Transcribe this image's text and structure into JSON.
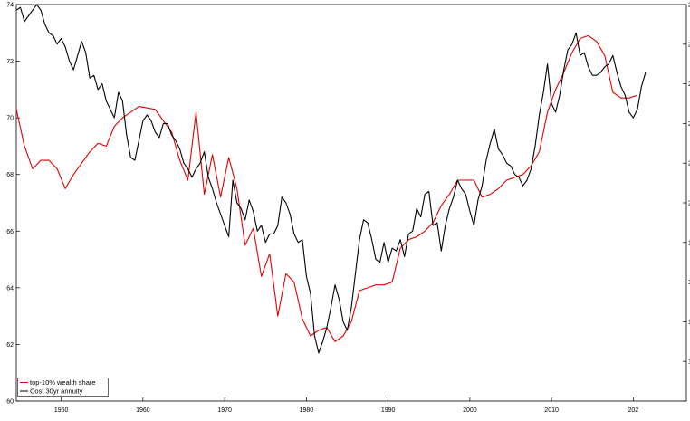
{
  "chart_data": {
    "type": "line",
    "title": "",
    "xlabel": "",
    "ylabel": "",
    "xlim": [
      1944.5,
      2026.5
    ],
    "ylim": [
      60,
      74
    ],
    "x_ticks": [
      "1950",
      "1960",
      "1970",
      "1980",
      "1990",
      "2000",
      "2010",
      "202"
    ],
    "y_ticks": [
      "60",
      "62",
      "64",
      "66",
      "68",
      "70",
      "72",
      "74"
    ],
    "right_ticks": [
      "",
      "1",
      "1",
      "1",
      "1",
      "2",
      "2",
      "2",
      "2",
      "2",
      "2"
    ],
    "grid": false,
    "legend_position": "bottom-left",
    "series": [
      {
        "name": "top-10% wealth share",
        "color": "#e00000",
        "x": [
          1944.5,
          1945.5,
          1946.5,
          1947.5,
          1948.5,
          1949.5,
          1950.5,
          1951.5,
          1952.5,
          1953.5,
          1954.5,
          1955.5,
          1956.5,
          1957.5,
          1958.5,
          1959.5,
          1960.5,
          1961.5,
          1962.5,
          1963.5,
          1964.5,
          1965.5,
          1966.5,
          1967.5,
          1968.5,
          1969.5,
          1970.5,
          1971.5,
          1972.5,
          1973.5,
          1974.5,
          1975.5,
          1976.5,
          1977.5,
          1978.5,
          1979.5,
          1980.5,
          1981.5,
          1982.5,
          1983.5,
          1984.5,
          1985.5,
          1986.5,
          1987.5,
          1988.5,
          1989.5,
          1990.5,
          1991.5,
          1992.5,
          1993.5,
          1994.5,
          1995.5,
          1996.5,
          1997.5,
          1998.5,
          1999.5,
          2000.5,
          2001.5,
          2002.5,
          2003.5,
          2004.5,
          2005.5,
          2006.5,
          2007.5,
          2008.5,
          2009.5,
          2010.5,
          2011.5,
          2012.5,
          2013.5,
          2014.5,
          2015.5,
          2016.5,
          2017.5,
          2018.5,
          2019.5,
          2020.5
        ],
        "values": [
          70.3,
          69.0,
          68.2,
          68.5,
          68.5,
          68.2,
          67.5,
          68.0,
          68.4,
          68.8,
          69.1,
          69.0,
          69.7,
          70.0,
          70.2,
          70.4,
          70.35,
          70.3,
          69.9,
          69.5,
          68.5,
          67.8,
          70.2,
          67.3,
          68.7,
          67.2,
          68.6,
          67.5,
          65.5,
          66.1,
          64.4,
          65.2,
          63.0,
          64.5,
          64.2,
          62.9,
          62.3,
          62.5,
          62.6,
          62.1,
          62.3,
          62.8,
          63.9,
          64.0,
          64.1,
          64.1,
          64.2,
          65.4,
          65.7,
          65.8,
          66.0,
          66.3,
          66.9,
          67.3,
          67.8,
          67.8,
          67.8,
          67.2,
          67.3,
          67.5,
          67.8,
          67.9,
          68.0,
          68.3,
          68.8,
          70.2,
          71.0,
          71.6,
          72.3,
          72.8,
          72.9,
          72.7,
          72.2,
          70.9,
          70.7,
          70.7,
          70.8
        ]
      },
      {
        "name": "Cost 30yr annuity",
        "color": "#000000",
        "x": [
          1944.5,
          1945.0,
          1945.5,
          1946.0,
          1946.5,
          1947.0,
          1947.5,
          1948.0,
          1948.5,
          1949.0,
          1949.5,
          1950.0,
          1950.5,
          1951.0,
          1951.5,
          1952.0,
          1952.5,
          1953.0,
          1953.5,
          1954.0,
          1954.5,
          1955.0,
          1955.5,
          1956.0,
          1956.5,
          1957.0,
          1957.5,
          1958.0,
          1958.5,
          1959.0,
          1959.5,
          1960.0,
          1960.5,
          1961.0,
          1961.5,
          1962.0,
          1962.5,
          1963.0,
          1963.5,
          1964.0,
          1964.5,
          1965.0,
          1965.5,
          1966.0,
          1966.5,
          1967.0,
          1967.5,
          1968.0,
          1968.5,
          1969.0,
          1969.5,
          1970.0,
          1970.5,
          1971.0,
          1971.5,
          1972.0,
          1972.5,
          1973.0,
          1973.5,
          1974.0,
          1974.5,
          1975.0,
          1975.5,
          1976.0,
          1976.5,
          1977.0,
          1977.5,
          1978.0,
          1978.5,
          1979.0,
          1979.5,
          1980.0,
          1980.5,
          1981.0,
          1981.5,
          1982.0,
          1982.5,
          1983.0,
          1983.5,
          1984.0,
          1984.5,
          1985.0,
          1985.5,
          1986.0,
          1986.5,
          1987.0,
          1987.5,
          1988.0,
          1988.5,
          1989.0,
          1989.5,
          1990.0,
          1990.5,
          1991.0,
          1991.5,
          1992.0,
          1992.5,
          1993.0,
          1993.5,
          1994.0,
          1994.5,
          1995.0,
          1995.5,
          1996.0,
          1996.5,
          1997.0,
          1997.5,
          1998.0,
          1998.5,
          1999.0,
          1999.5,
          2000.0,
          2000.5,
          2001.0,
          2001.5,
          2002.0,
          2002.5,
          2003.0,
          2003.5,
          2004.0,
          2004.5,
          2005.0,
          2005.5,
          2006.0,
          2006.5,
          2007.0,
          2007.5,
          2008.0,
          2008.5,
          2009.0,
          2009.5,
          2010.0,
          2010.5,
          2011.0,
          2011.5,
          2012.0,
          2012.5,
          2013.0,
          2013.5,
          2014.0,
          2014.5,
          2015.0,
          2015.5,
          2016.0,
          2016.5,
          2017.0,
          2017.5,
          2018.0,
          2018.5,
          2019.0,
          2019.5,
          2020.0,
          2020.5,
          2021.0,
          2021.5
        ],
        "values": [
          73.8,
          73.9,
          73.4,
          73.6,
          73.8,
          74.0,
          73.8,
          73.3,
          73.0,
          72.9,
          72.6,
          72.8,
          72.5,
          72.0,
          71.7,
          72.2,
          72.7,
          72.3,
          71.4,
          71.5,
          71.0,
          71.2,
          70.6,
          70.3,
          70.0,
          70.9,
          70.6,
          69.4,
          68.6,
          68.5,
          69.2,
          69.9,
          70.1,
          69.9,
          69.5,
          69.3,
          69.8,
          69.8,
          69.4,
          69.2,
          68.9,
          68.4,
          68.2,
          67.9,
          68.2,
          68.4,
          68.8,
          67.9,
          67.5,
          67.0,
          66.6,
          66.2,
          65.8,
          67.8,
          67.0,
          66.8,
          66.4,
          67.1,
          66.7,
          66.0,
          66.2,
          65.6,
          65.9,
          65.9,
          66.2,
          67.2,
          67.0,
          66.6,
          65.9,
          65.6,
          65.7,
          64.4,
          63.8,
          62.3,
          61.7,
          62.1,
          62.6,
          63.3,
          64.1,
          63.6,
          62.8,
          62.5,
          63.3,
          64.5,
          65.7,
          66.4,
          66.3,
          65.7,
          65.0,
          64.9,
          65.6,
          64.9,
          65.4,
          65.3,
          65.7,
          65.1,
          65.9,
          66.0,
          66.8,
          66.5,
          67.3,
          67.4,
          66.2,
          66.3,
          65.3,
          66.2,
          66.8,
          67.2,
          67.8,
          67.5,
          67.3,
          66.7,
          66.2,
          67.1,
          67.6,
          68.5,
          69.1,
          69.6,
          68.9,
          68.7,
          68.4,
          68.3,
          68.0,
          67.9,
          67.6,
          67.8,
          68.2,
          69.0,
          70.1,
          70.9,
          71.9,
          70.5,
          70.2,
          70.8,
          71.7,
          72.4,
          72.6,
          73.0,
          72.2,
          72.3,
          71.8,
          71.5,
          71.5,
          71.6,
          71.8,
          71.9,
          72.2,
          71.6,
          71.1,
          70.8,
          70.2,
          70.0,
          70.3,
          71.1,
          71.6
        ]
      }
    ]
  }
}
